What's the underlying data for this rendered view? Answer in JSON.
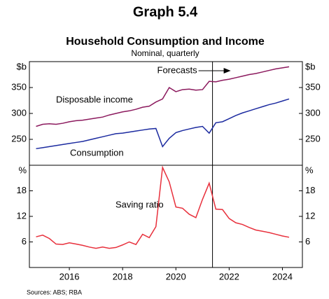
{
  "header": {
    "title": "Graph 5.4",
    "subtitle": "Household Consumption and Income",
    "caption": "Nominal, quarterly"
  },
  "source": "Sources: ABS; RBA",
  "chart_data": [
    {
      "type": "line",
      "y_unit": "$b",
      "x": [
        2014.75,
        2015,
        2015.25,
        2015.5,
        2015.75,
        2016,
        2016.25,
        2016.5,
        2016.75,
        2017,
        2017.25,
        2017.5,
        2017.75,
        2018,
        2018.25,
        2018.5,
        2018.75,
        2019,
        2019.25,
        2019.5,
        2019.75,
        2020,
        2020.25,
        2020.5,
        2020.75,
        2021,
        2021.25,
        2021.5,
        2021.75,
        2022,
        2022.25,
        2022.5,
        2022.75,
        2023,
        2023.25,
        2023.5,
        2023.75,
        2024,
        2024.25
      ],
      "xlim": [
        2014.5,
        2024.75
      ],
      "ylim": [
        200,
        400
      ],
      "yticks": [
        250,
        300,
        350
      ],
      "forecast": {
        "text": "Forecasts",
        "x": 2021.375
      },
      "series": [
        {
          "name": "Disposable income",
          "color": "#8c1a5e",
          "values": [
            275,
            279,
            280,
            279,
            281,
            284,
            286,
            287,
            289,
            291,
            293,
            297,
            300,
            303,
            305,
            308,
            312,
            314,
            322,
            328,
            350,
            342,
            346,
            347,
            345,
            346,
            362,
            361,
            364,
            366,
            369,
            372,
            375,
            377,
            380,
            383,
            386,
            388,
            390
          ]
        },
        {
          "name": "Consumption",
          "color": "#1c2ba0",
          "values": [
            232,
            234,
            236,
            238,
            240,
            242,
            244,
            246,
            249,
            252,
            255,
            258,
            261,
            262,
            264,
            266,
            268,
            270,
            271,
            236,
            252,
            263,
            267,
            270,
            273,
            275,
            262,
            282,
            284,
            290,
            296,
            301,
            305,
            309,
            313,
            317,
            320,
            324,
            328
          ]
        }
      ]
    },
    {
      "type": "line",
      "y_unit": "%",
      "x": [
        2014.75,
        2015,
        2015.25,
        2015.5,
        2015.75,
        2016,
        2016.25,
        2016.5,
        2016.75,
        2017,
        2017.25,
        2017.5,
        2017.75,
        2018,
        2018.25,
        2018.5,
        2018.75,
        2019,
        2019.25,
        2019.5,
        2019.75,
        2020,
        2020.25,
        2020.5,
        2020.75,
        2021,
        2021.25,
        2021.5,
        2021.75,
        2022,
        2022.25,
        2022.5,
        2022.75,
        2023,
        2023.25,
        2023.5,
        2023.75,
        2024,
        2024.25
      ],
      "xlim": [
        2014.5,
        2024.75
      ],
      "ylim": [
        0,
        24
      ],
      "yticks": [
        6,
        12,
        18
      ],
      "xticks": [
        2016,
        2018,
        2020,
        2022,
        2024
      ],
      "series": [
        {
          "name": "Saving ratio",
          "color": "#e8303c",
          "values": [
            7.2,
            7.6,
            6.8,
            5.5,
            5.4,
            5.8,
            5.5,
            5.2,
            4.8,
            4.5,
            4.8,
            4.5,
            4.7,
            5.3,
            6.0,
            5.4,
            7.8,
            7.0,
            9.6,
            23.5,
            20.1,
            14.2,
            13.9,
            12.5,
            11.7,
            16.0,
            19.8,
            13.7,
            13.6,
            11.5,
            10.5,
            10.1,
            9.4,
            8.8,
            8.5,
            8.2,
            7.8,
            7.4,
            7.1
          ]
        }
      ]
    }
  ]
}
